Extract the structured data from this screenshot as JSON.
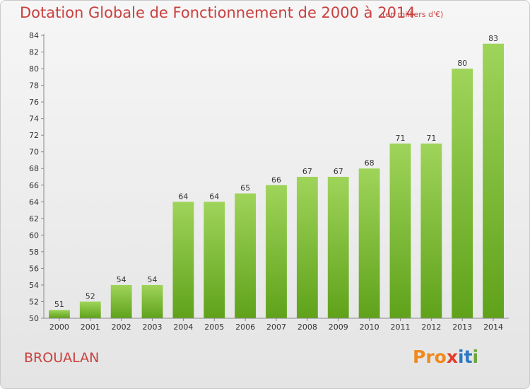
{
  "header": {
    "title": "Dotation Globale de Fonctionnement de 2000 à 2014",
    "subtitle": "(en milliers d'€)"
  },
  "footer": {
    "commune": "BROUALAN",
    "logo_letters": [
      "P",
      "r",
      "o",
      "x",
      "i",
      "t",
      "i"
    ],
    "logo_colors": [
      "#f08a1c",
      "#f08a1c",
      "#f08a1c",
      "#e43b2a",
      "#2b79c2",
      "#2b79c2",
      "#6aa63a"
    ]
  },
  "colors": {
    "bar_top": "#9fd45a",
    "bar_bottom": "#5fa21a",
    "text": "#c9403f"
  },
  "chart_data": {
    "type": "bar",
    "title": "Dotation Globale de Fonctionnement de 2000 à 2014",
    "subtitle": "(en milliers d'€)",
    "categories": [
      "2000",
      "2001",
      "2002",
      "2003",
      "2004",
      "2005",
      "2006",
      "2007",
      "2008",
      "2009",
      "2010",
      "2011",
      "2012",
      "2013",
      "2014"
    ],
    "values": [
      51,
      52,
      54,
      54,
      64,
      64,
      65,
      66,
      67,
      67,
      68,
      71,
      71,
      80,
      83
    ],
    "ylim": [
      50,
      84
    ],
    "yticks": [
      50,
      52,
      54,
      56,
      58,
      60,
      62,
      64,
      66,
      68,
      70,
      72,
      74,
      76,
      78,
      80,
      82,
      84
    ],
    "grid": false,
    "data_labels": true
  }
}
